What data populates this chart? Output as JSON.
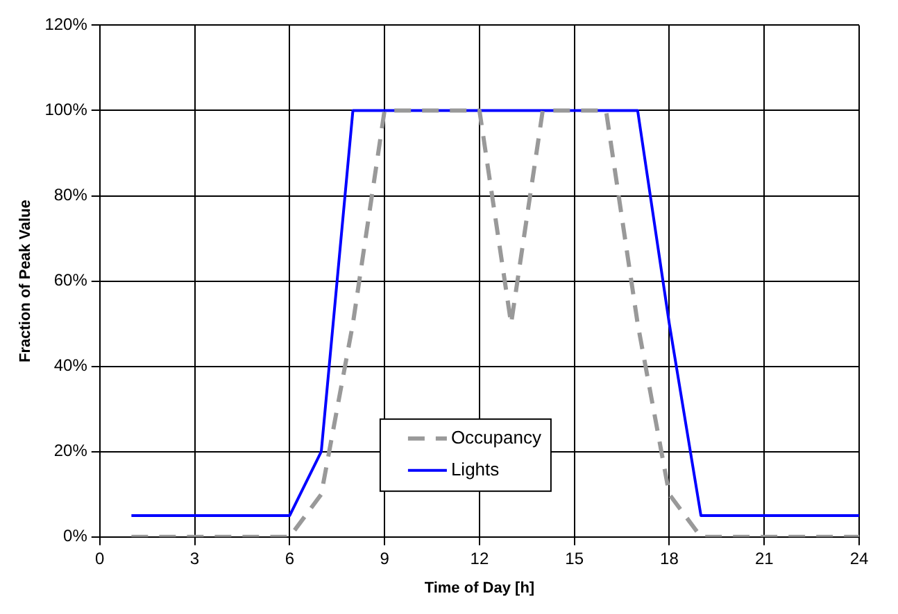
{
  "chart_data": {
    "type": "line",
    "xlabel": "Time of Day [h]",
    "ylabel": "Fraction of Peak Value",
    "x": [
      1,
      2,
      3,
      4,
      5,
      6,
      7,
      8,
      9,
      10,
      11,
      12,
      13,
      14,
      15,
      16,
      17,
      18,
      19,
      20,
      21,
      22,
      23,
      24
    ],
    "series": [
      {
        "name": "Occupancy",
        "color": "#999999",
        "line_style": "dashed",
        "values": [
          0,
          0,
          0,
          0,
          0,
          0,
          10,
          50,
          100,
          100,
          100,
          100,
          50,
          100,
          100,
          100,
          50,
          10,
          0,
          0,
          0,
          0,
          0,
          0
        ]
      },
      {
        "name": "Lights",
        "color": "#0000ff",
        "line_style": "solid",
        "values": [
          5,
          5,
          5,
          5,
          5,
          5,
          20,
          100,
          100,
          100,
          100,
          100,
          100,
          100,
          100,
          100,
          100,
          50,
          5,
          5,
          5,
          5,
          5,
          5
        ]
      }
    ],
    "xlim": [
      0,
      24
    ],
    "xticks": [
      0,
      3,
      6,
      9,
      12,
      15,
      18,
      21,
      24
    ],
    "ylim": [
      0,
      120
    ],
    "yticks": [
      {
        "value": 0,
        "label": "0%"
      },
      {
        "value": 20,
        "label": "20%"
      },
      {
        "value": 40,
        "label": "40%"
      },
      {
        "value": 60,
        "label": "60%"
      },
      {
        "value": 80,
        "label": "80%"
      },
      {
        "value": 100,
        "label": "100%"
      },
      {
        "value": 120,
        "label": "120%"
      }
    ],
    "grid": true,
    "legend": "bottom",
    "marker": "none"
  }
}
